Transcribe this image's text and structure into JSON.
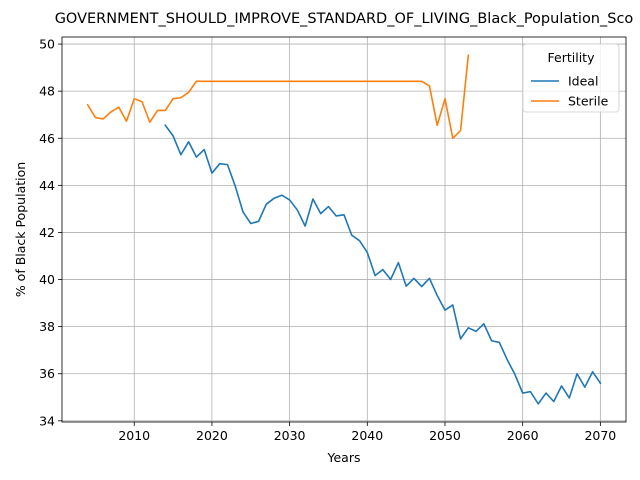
{
  "chart_data": {
    "type": "line",
    "title": "GOVERNMENT_SHOULD_IMPROVE_STANDARD_OF_LIVING_Black_Population_Sco",
    "xlabel": "Years",
    "ylabel": "% of Black Population",
    "xlim": [
      2000.7,
      2073.3
    ],
    "ylim": [
      33.95,
      50.3
    ],
    "x_ticks": [
      2010,
      2020,
      2030,
      2040,
      2050,
      2060,
      2070
    ],
    "y_ticks": [
      34,
      36,
      38,
      40,
      42,
      44,
      46,
      48,
      50
    ],
    "grid": true,
    "legend": {
      "title": "Fertility",
      "placement": "top-right"
    },
    "series": [
      {
        "name": "Ideal",
        "color": "#1f77b4",
        "x": [
          2014,
          2015,
          2016,
          2017,
          2018,
          2019,
          2020,
          2021,
          2022,
          2023,
          2024,
          2025,
          2026,
          2027,
          2028,
          2029,
          2030,
          2031,
          2032,
          2033,
          2034,
          2035,
          2036,
          2037,
          2038,
          2039,
          2040,
          2041,
          2042,
          2043,
          2044,
          2045,
          2046,
          2047,
          2048,
          2049,
          2050,
          2051,
          2052,
          2053,
          2054,
          2055,
          2056,
          2057,
          2058,
          2059,
          2060,
          2061,
          2062,
          2063,
          2064,
          2065,
          2066,
          2067,
          2068,
          2069,
          2070
        ],
        "values": [
          46.55,
          46.1,
          45.3,
          45.85,
          45.2,
          45.52,
          44.52,
          44.92,
          44.88,
          43.97,
          42.87,
          42.38,
          42.47,
          43.2,
          43.45,
          43.58,
          43.38,
          42.95,
          42.27,
          43.42,
          42.8,
          43.1,
          42.7,
          42.75,
          41.88,
          41.65,
          41.15,
          40.17,
          40.42,
          40.0,
          40.72,
          39.72,
          40.05,
          39.7,
          40.05,
          39.32,
          38.7,
          38.92,
          37.48,
          37.95,
          37.8,
          38.12,
          37.4,
          37.33,
          36.6,
          35.97,
          35.18,
          35.24,
          34.72,
          35.18,
          34.82,
          35.48,
          34.97,
          36.0,
          35.43,
          36.08,
          35.6
        ]
      },
      {
        "name": "Sterile",
        "color": "#ff7f0e",
        "x": [
          2004,
          2005,
          2006,
          2007,
          2008,
          2009,
          2010,
          2011,
          2012,
          2013,
          2014,
          2015,
          2016,
          2017,
          2018,
          2019,
          2020,
          2021,
          2022,
          2023,
          2024,
          2025,
          2026,
          2027,
          2028,
          2029,
          2030,
          2031,
          2032,
          2033,
          2034,
          2035,
          2036,
          2037,
          2038,
          2039,
          2040,
          2041,
          2042,
          2043,
          2044,
          2045,
          2046,
          2047,
          2048,
          2049,
          2050,
          2051,
          2052,
          2053
        ],
        "values": [
          47.42,
          46.88,
          46.82,
          47.12,
          47.32,
          46.72,
          47.68,
          47.55,
          46.68,
          47.18,
          47.18,
          47.68,
          47.72,
          47.95,
          48.42,
          48.42,
          48.42,
          48.42,
          48.42,
          48.42,
          48.42,
          48.42,
          48.42,
          48.42,
          48.42,
          48.42,
          48.42,
          48.42,
          48.42,
          48.42,
          48.42,
          48.42,
          48.42,
          48.42,
          48.42,
          48.42,
          48.42,
          48.42,
          48.42,
          48.42,
          48.42,
          48.42,
          48.42,
          48.42,
          48.22,
          46.55,
          47.68,
          46.0,
          46.32,
          49.52
        ]
      }
    ]
  }
}
